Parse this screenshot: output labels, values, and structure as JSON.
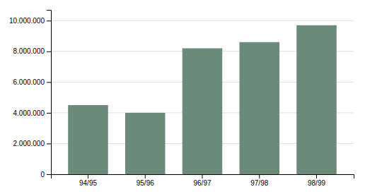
{
  "chart_data": {
    "type": "bar",
    "categories": [
      "94/95",
      "95/96",
      "96/97",
      "97/98",
      "98/99"
    ],
    "values": [
      4500000,
      4000000,
      8200000,
      8600000,
      9700000
    ],
    "color": "#6b8a7a",
    "ylim": [
      0,
      10700000
    ],
    "yticks": [
      0,
      {
        "value": 2000000,
        "label": "2.000.000"
      },
      {
        "value": 4000000,
        "label": "4.000.000"
      },
      {
        "value": 6000000,
        "label": "6.000.000"
      },
      {
        "value": 8000000,
        "label": "8.000.000"
      },
      {
        "value": 10000000,
        "label": "10.000.000"
      }
    ],
    "grid": true
  }
}
